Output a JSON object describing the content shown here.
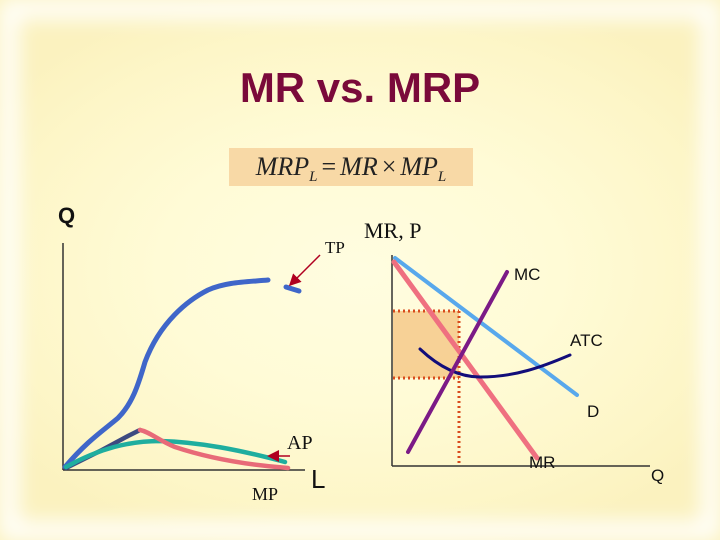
{
  "slide": {
    "title": "MR vs. MRP",
    "formula": {
      "lhs": "MRP",
      "lhs_sub": "L",
      "equals": "=",
      "mr": "MR",
      "times": "×",
      "mp": "MP",
      "mp_sub": "L"
    }
  },
  "left_graph": {
    "y_axis_label": "Q",
    "x_axis_label": "L",
    "curve_labels": {
      "tp": "TP",
      "ap": "AP",
      "mp": "MP"
    }
  },
  "right_graph": {
    "y_axis_label": "MR, P",
    "x_axis_label": "Q",
    "curve_labels": {
      "mc": "MC",
      "atc": "ATC",
      "d": "D",
      "mr": "MR"
    }
  },
  "colors": {
    "title": "#7a0a3a",
    "tp": "#3f66c9",
    "mp": "#e86a78",
    "ap": "#1fae9f",
    "mc": "#7b1a86",
    "atc": "#120d7a",
    "demand": "#58a8ec",
    "mr": "#ef7080",
    "dotted": "#d84a1c",
    "profit_fill": "#f6c98a"
  }
}
